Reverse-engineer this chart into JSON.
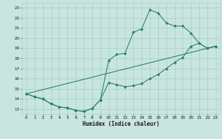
{
  "xlabel": "Humidex (Indice chaleur)",
  "bg_color": "#c8e6df",
  "line_color": "#2d7d72",
  "grid_color": "#a8d0c8",
  "xlim": [
    -0.5,
    23.5
  ],
  "ylim": [
    12.5,
    23.5
  ],
  "xticks": [
    0,
    1,
    2,
    3,
    4,
    5,
    6,
    7,
    8,
    9,
    10,
    11,
    12,
    13,
    14,
    15,
    16,
    17,
    18,
    19,
    20,
    21,
    22,
    23
  ],
  "yticks": [
    13,
    14,
    15,
    16,
    17,
    18,
    19,
    20,
    21,
    22,
    23
  ],
  "line1_x": [
    0,
    1,
    2,
    3,
    4,
    5,
    6,
    7,
    8,
    9,
    10,
    11,
    12,
    13,
    14,
    15,
    16,
    17,
    18,
    19,
    20,
    21,
    22,
    23
  ],
  "line1_y": [
    14.5,
    14.2,
    14.0,
    13.5,
    13.2,
    13.1,
    12.85,
    12.75,
    13.05,
    13.9,
    17.8,
    18.4,
    18.5,
    20.6,
    20.9,
    22.8,
    22.5,
    21.5,
    21.2,
    21.2,
    20.5,
    19.5,
    19.0,
    19.2
  ],
  "line2_x": [
    0,
    1,
    2,
    3,
    4,
    5,
    6,
    7,
    8,
    9,
    10,
    11,
    12,
    13,
    14,
    15,
    16,
    17,
    18,
    19,
    20,
    21,
    22,
    23
  ],
  "line2_y": [
    14.5,
    14.2,
    14.0,
    13.5,
    13.2,
    13.1,
    12.85,
    12.75,
    13.05,
    13.9,
    15.6,
    15.4,
    15.2,
    15.3,
    15.5,
    16.0,
    16.4,
    17.0,
    17.6,
    18.1,
    19.2,
    19.5,
    19.0,
    19.2
  ],
  "line3_x": [
    0,
    23
  ],
  "line3_y": [
    14.5,
    19.2
  ]
}
